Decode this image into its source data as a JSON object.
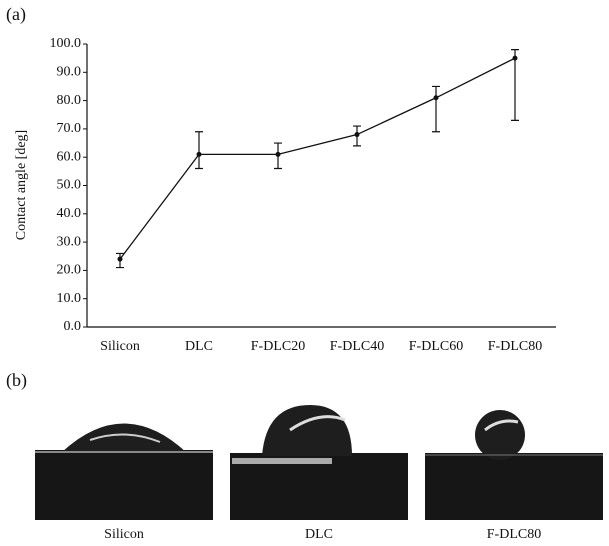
{
  "chart_data": {
    "type": "line",
    "categories": [
      "Silicon",
      "DLC",
      "F-DLC20",
      "F-DLC40",
      "F-DLC60",
      "F-DLC80"
    ],
    "values": [
      24,
      61,
      61,
      68,
      81,
      95
    ],
    "error_plus": [
      2,
      8,
      4,
      3,
      4,
      3
    ],
    "error_minus": [
      3,
      5,
      5,
      4,
      12,
      22
    ],
    "color": "#111111",
    "y_label": "Contact angle [deg]",
    "ylim": [
      0,
      100
    ],
    "yticks": [
      {
        "value": 0,
        "label": "0.0"
      },
      {
        "value": 10,
        "label": "10.0"
      },
      {
        "value": 20,
        "label": "20.0"
      },
      {
        "value": 30,
        "label": "30.0"
      },
      {
        "value": 40,
        "label": "40.0"
      },
      {
        "value": 50,
        "label": "50.0"
      },
      {
        "value": 60,
        "label": "60.0"
      },
      {
        "value": 70,
        "label": "70.0"
      },
      {
        "value": 80,
        "label": "80.0"
      },
      {
        "value": 90,
        "label": "90.0"
      },
      {
        "value": 100,
        "label": "100.0"
      }
    ]
  },
  "panel_labels": [
    "(a)",
    "(b)"
  ],
  "photos": {
    "captions": [
      "Silicon",
      "DLC",
      "F-DLC80"
    ]
  }
}
